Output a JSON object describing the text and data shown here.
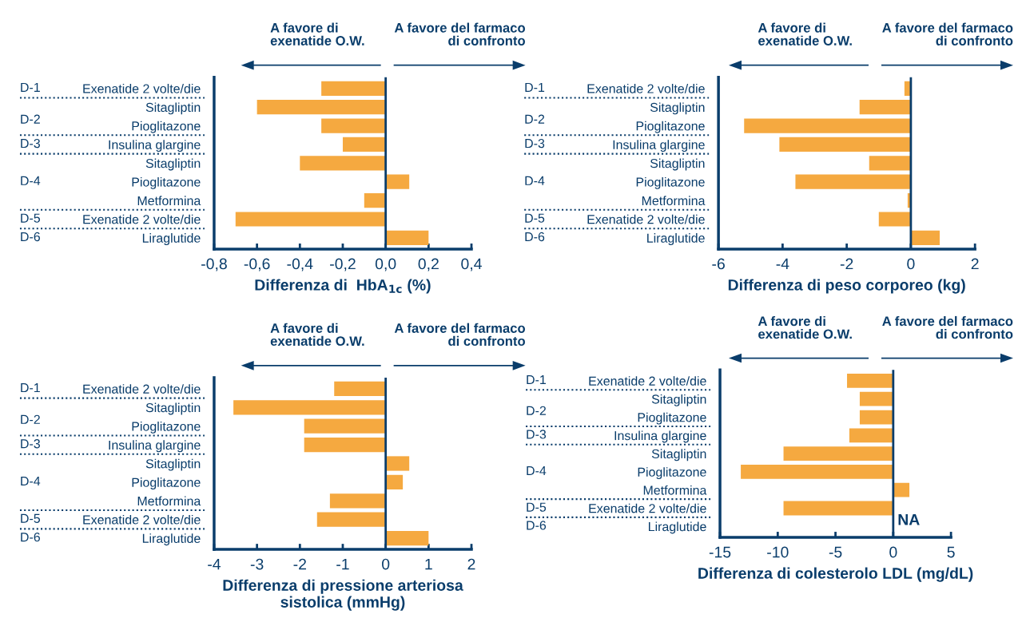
{
  "chart_data": [
    {
      "type": "bar",
      "orientation": "horizontal",
      "xlabel": "Differenza di  HbA$_{1c}$ (%)",
      "categories": [
        "Exenatide 2 volte/die",
        "Sitagliptin",
        "Pioglitazone",
        "Insulina glargine",
        "Sitagliptin",
        "Pioglitazone",
        "Metformina",
        "Exenatide 2 volte/die",
        "Liraglutide"
      ],
      "values": [
        -0.3,
        -0.6,
        -0.3,
        -0.2,
        -0.4,
        0.11,
        -0.1,
        -0.7,
        0.2
      ],
      "color": "#f5a940",
      "xlim": [
        -0.8,
        0.4
      ],
      "xticks": [
        {
          "value": -0.8,
          "label": "-0,8"
        },
        {
          "value": -0.6,
          "label": "-0,6"
        },
        {
          "value": -0.4,
          "label": "-0,4"
        },
        {
          "value": -0.2,
          "label": "-0,2"
        },
        {
          "value": 0,
          "label": "0,0"
        },
        {
          "value": 0.2,
          "label": "0,2"
        },
        {
          "value": 0.4,
          "label": "0,4"
        }
      ],
      "ref_lines": [
        {
          "axis": "x",
          "value": 0,
          "color": "#0a3d6b"
        }
      ],
      "annotations": [
        "A favore di\nexenatide O.W.",
        "A favore del farmaco\ndi confronto",
        "D-1",
        "D-2",
        "D-3",
        "D-4",
        "D-5",
        "D-6"
      ]
    },
    {
      "type": "bar",
      "orientation": "horizontal",
      "xlabel": "Differenza di peso corporeo (kg)",
      "categories": [
        "Exenatide 2 volte/die",
        "Sitagliptin",
        "Pioglitazone",
        "Insulina glargine",
        "Sitagliptin",
        "Pioglitazone",
        "Metformina",
        "Exenatide 2 volte/die",
        "Liraglutide"
      ],
      "values": [
        -0.2,
        -1.6,
        -5.2,
        -4.1,
        -1.3,
        -3.6,
        -0.1,
        -1.0,
        0.9
      ],
      "color": "#f5a940",
      "xlim": [
        -6,
        2
      ],
      "xticks": [
        -6,
        -4,
        -2,
        0,
        2
      ],
      "ref_lines": [
        {
          "axis": "x",
          "value": 0,
          "color": "#0a3d6b"
        }
      ],
      "annotations": [
        "A favore di\nexenatide O.W.",
        "A favore del farmaco\ndi confronto",
        "D-1",
        "D-2",
        "D-3",
        "D-4",
        "D-5",
        "D-6"
      ]
    },
    {
      "type": "bar",
      "orientation": "horizontal",
      "xlabel": "Differenza di pressione arteriosa\nsistolica (mmHg)",
      "categories": [
        "Exenatide 2 volte/die",
        "Sitagliptin",
        "Pioglitazone",
        "Insulina glargine",
        "Sitagliptin",
        "Pioglitazone",
        "Metformina",
        "Exenatide 2 volte/die",
        "Liraglutide"
      ],
      "values": [
        -1.2,
        -3.55,
        -1.9,
        -1.9,
        0.55,
        0.4,
        -1.3,
        -1.6,
        1.0
      ],
      "color": "#f5a940",
      "xlim": [
        -4,
        2
      ],
      "xticks": [
        -4,
        -3,
        -2,
        -1,
        0,
        1,
        2
      ],
      "ref_lines": [
        {
          "axis": "x",
          "value": 0,
          "color": "#0a3d6b"
        }
      ],
      "annotations": [
        "A favore di\nexenatide O.W.",
        "A favore del farmaco\ndi confronto",
        "D-1",
        "D-2",
        "D-3",
        "D-4",
        "D-5",
        "D-6"
      ]
    },
    {
      "type": "bar",
      "orientation": "horizontal",
      "xlabel": "Differenza di colesterolo LDL (mg/dL)",
      "categories": [
        "Exenatide 2 volte/die",
        "Sitagliptin",
        "Pioglitazone",
        "Insulina glargine",
        "Sitagliptin",
        "Pioglitazone",
        "Metformina",
        "Exenatide 2 volte/die",
        "Liraglutide"
      ],
      "values": [
        -4.0,
        -2.9,
        -2.9,
        -3.8,
        -9.5,
        -13.2,
        1.4,
        -9.5,
        null
      ],
      "color": "#f5a940",
      "xlim": [
        -15,
        5
      ],
      "xticks": [
        -15,
        -10,
        -5,
        0,
        5
      ],
      "ref_lines": [
        {
          "axis": "x",
          "value": 0,
          "color": "#0a3d6b"
        }
      ],
      "annotations": [
        "A favore di\nexenatide O.W.",
        "A favore del farmaco\ndi confronto",
        "D-1",
        "D-2",
        "D-3",
        "D-4",
        "D-5",
        "D-6",
        {
          "text": "NA",
          "x": 0,
          "y": "Liraglutide"
        }
      ]
    }
  ]
}
